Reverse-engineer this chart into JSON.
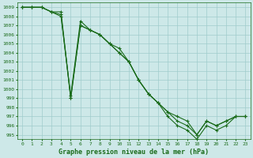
{
  "bg_color": "#cde8e8",
  "grid_color": "#a0cccc",
  "line_color": "#1a6b1a",
  "title": "Graphe pression niveau de la mer (hPa)",
  "xlim": [
    -0.5,
    23.5
  ],
  "ylim": [
    994.5,
    1009.5
  ],
  "yticks": [
    995,
    996,
    997,
    998,
    999,
    1000,
    1001,
    1002,
    1003,
    1004,
    1005,
    1006,
    1007,
    1008,
    1009
  ],
  "xticks": [
    0,
    1,
    2,
    3,
    4,
    5,
    6,
    7,
    8,
    9,
    10,
    11,
    12,
    13,
    14,
    15,
    16,
    17,
    18,
    19,
    20,
    21,
    22,
    23
  ],
  "series": [
    [
      1009.0,
      1009.0,
      1009.0,
      1008.5,
      1008.5,
      999.0,
      1007.0,
      1006.5,
      1006.0,
      1005.0,
      1004.5,
      1003.0,
      1001.0,
      999.5,
      998.5,
      997.5,
      997.0,
      996.5,
      995.0,
      996.5,
      996.0,
      996.5,
      997.0,
      997.0
    ],
    [
      1009.0,
      1009.0,
      1009.0,
      1008.5,
      1008.2,
      999.0,
      1007.0,
      1006.5,
      1006.0,
      1005.0,
      1004.0,
      1003.0,
      1001.0,
      999.5,
      998.5,
      997.5,
      996.5,
      996.0,
      995.0,
      996.5,
      996.0,
      996.5,
      997.0,
      997.0
    ],
    [
      1009.0,
      1009.0,
      1009.0,
      1008.5,
      1008.0,
      999.3,
      1007.5,
      1006.5,
      1006.0,
      1005.0,
      1004.0,
      1003.0,
      1001.0,
      999.5,
      998.5,
      997.0,
      996.0,
      995.5,
      994.5,
      996.0,
      995.5,
      996.0,
      997.0,
      997.0
    ]
  ],
  "figsize": [
    3.2,
    2.0
  ],
  "dpi": 100,
  "tick_labelsize": 4.5,
  "title_fontsize": 6.0,
  "line_width": 0.8,
  "marker_size": 2.5
}
